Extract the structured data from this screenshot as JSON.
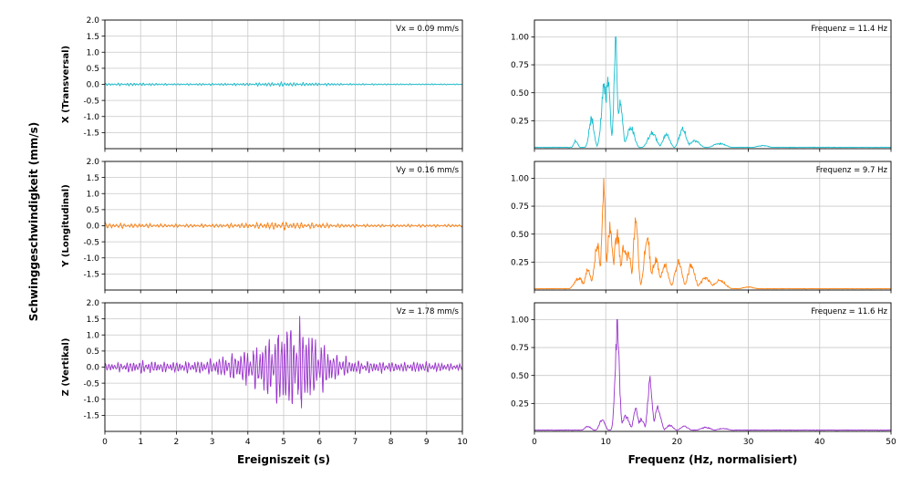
{
  "figure": {
    "shared_ylabel": "Schwinggeschwindigkeit (mm/s)"
  },
  "chart_data": [
    {
      "type": "line",
      "panel": "time-x",
      "ylabel": "X (Transversal)",
      "annotation": "Vx = 0.09 mm/s",
      "xlabel": "",
      "xlim": [
        0,
        10
      ],
      "ylim": [
        -2,
        2
      ],
      "yticks": [
        -1.5,
        -1.0,
        -0.5,
        0.0,
        0.5,
        1.0,
        1.5,
        2.0
      ],
      "ytick_labels": [
        "-1.5",
        "-1.0",
        "-0.5",
        "0.0",
        "0.5",
        "1.0",
        "1.5",
        "2.0"
      ],
      "xticks": [
        0,
        1,
        2,
        3,
        4,
        5,
        6,
        7,
        8,
        9,
        10
      ],
      "xtick_labels": [],
      "color": "#17becf",
      "waveform": {
        "duration": 10,
        "samples": 1200,
        "frequency": 11.4,
        "peak": 0.09,
        "envelope": [
          [
            0,
            0.45
          ],
          [
            1,
            0.55
          ],
          [
            2,
            0.3
          ],
          [
            3,
            0.4
          ],
          [
            4,
            0.5
          ],
          [
            5,
            0.8
          ],
          [
            6,
            0.55
          ],
          [
            7,
            0.3
          ],
          [
            8,
            0.25
          ],
          [
            9,
            0.25
          ],
          [
            10,
            0.2
          ]
        ]
      },
      "grid": true
    },
    {
      "type": "line",
      "panel": "spec-x",
      "annotation": "Frequenz = 11.4 Hz",
      "xlim": [
        0,
        50
      ],
      "ylim": [
        0,
        1.15
      ],
      "yticks": [
        0.25,
        0.5,
        0.75,
        1.0
      ],
      "ytick_labels": [
        "0.25",
        "0.50",
        "0.75",
        "1.00"
      ],
      "xticks": [
        0,
        10,
        20,
        30,
        40,
        50
      ],
      "xtick_labels": [],
      "color": "#17becf",
      "spectrum": {
        "peaks": [
          [
            5.8,
            0.08,
            0.3
          ],
          [
            8.0,
            0.3,
            0.35
          ],
          [
            9.8,
            0.63,
            0.4
          ],
          [
            10.3,
            0.67,
            0.3
          ],
          [
            11.4,
            1.0,
            0.25
          ],
          [
            12.0,
            0.45,
            0.35
          ],
          [
            13.5,
            0.22,
            0.5
          ],
          [
            16.5,
            0.16,
            0.6
          ],
          [
            18.5,
            0.14,
            0.5
          ],
          [
            20.8,
            0.2,
            0.5
          ],
          [
            22.5,
            0.08,
            0.7
          ],
          [
            26,
            0.05,
            1.0
          ],
          [
            32,
            0.03,
            1.0
          ]
        ]
      },
      "grid": true
    },
    {
      "type": "line",
      "panel": "time-y",
      "ylabel": "Y (Longitudinal)",
      "annotation": "Vy = 0.16 mm/s",
      "xlim": [
        0,
        10
      ],
      "ylim": [
        -2,
        2
      ],
      "yticks": [
        -1.5,
        -1.0,
        -0.5,
        0.0,
        0.5,
        1.0,
        1.5,
        2.0
      ],
      "ytick_labels": [
        "-1.5",
        "-1.0",
        "-0.5",
        "0.0",
        "0.5",
        "1.0",
        "1.5",
        "2.0"
      ],
      "xticks": [
        0,
        1,
        2,
        3,
        4,
        5,
        6,
        7,
        8,
        9,
        10
      ],
      "xtick_labels": [],
      "color": "#ff7f0e",
      "waveform": {
        "duration": 10,
        "samples": 1200,
        "frequency": 9.7,
        "peak": 0.16,
        "envelope": [
          [
            0,
            0.55
          ],
          [
            1,
            0.5
          ],
          [
            2,
            0.35
          ],
          [
            3,
            0.4
          ],
          [
            4,
            0.55
          ],
          [
            5,
            0.85
          ],
          [
            6,
            0.55
          ],
          [
            7,
            0.35
          ],
          [
            8,
            0.3
          ],
          [
            9,
            0.3
          ],
          [
            10,
            0.3
          ]
        ]
      },
      "grid": true
    },
    {
      "type": "line",
      "panel": "spec-y",
      "annotation": "Frequenz = 9.7 Hz",
      "xlim": [
        0,
        50
      ],
      "ylim": [
        0,
        1.15
      ],
      "yticks": [
        0.25,
        0.5,
        0.75,
        1.0
      ],
      "ytick_labels": [
        "0.25",
        "0.50",
        "0.75",
        "1.00"
      ],
      "xticks": [
        0,
        10,
        20,
        30,
        40,
        50
      ],
      "xtick_labels": [],
      "color": "#ff7f0e",
      "spectrum": {
        "peaks": [
          [
            6.2,
            0.12,
            0.6
          ],
          [
            7.5,
            0.2,
            0.4
          ],
          [
            8.8,
            0.45,
            0.4
          ],
          [
            9.7,
            1.0,
            0.25
          ],
          [
            10.6,
            0.65,
            0.35
          ],
          [
            11.6,
            0.55,
            0.4
          ],
          [
            12.6,
            0.45,
            0.4
          ],
          [
            13.2,
            0.35,
            0.4
          ],
          [
            14.2,
            0.75,
            0.3
          ],
          [
            15.8,
            0.55,
            0.4
          ],
          [
            17,
            0.3,
            0.5
          ],
          [
            18.3,
            0.25,
            0.5
          ],
          [
            20.2,
            0.28,
            0.5
          ],
          [
            22,
            0.25,
            0.5
          ],
          [
            24,
            0.12,
            0.7
          ],
          [
            26,
            0.1,
            0.8
          ],
          [
            30,
            0.03,
            1.0
          ]
        ]
      },
      "grid": true
    },
    {
      "type": "line",
      "panel": "time-z",
      "ylabel": "Z (Vertikal)",
      "annotation": "Vz = 1.78 mm/s",
      "xlabel": "Ereigniszeit (s)",
      "xlim": [
        0,
        10
      ],
      "ylim": [
        -2,
        2
      ],
      "yticks": [
        -1.5,
        -1.0,
        -0.5,
        0.0,
        0.5,
        1.0,
        1.5,
        2.0
      ],
      "ytick_labels": [
        "-1.5",
        "-1.0",
        "-0.5",
        "0.0",
        "0.5",
        "1.0",
        "1.5",
        "2.0"
      ],
      "xticks": [
        0,
        1,
        2,
        3,
        4,
        5,
        6,
        7,
        8,
        9,
        10
      ],
      "xtick_labels": [
        "0",
        "1",
        "2",
        "3",
        "4",
        "5",
        "6",
        "7",
        "8",
        "9",
        "10"
      ],
      "color": "#9933cc",
      "waveform": {
        "duration": 10,
        "samples": 1200,
        "frequency": 11.6,
        "peak": 1.78,
        "envelope": [
          [
            0,
            0.06
          ],
          [
            1,
            0.12
          ],
          [
            2,
            0.1
          ],
          [
            2.5,
            0.12
          ],
          [
            3,
            0.15
          ],
          [
            3.5,
            0.25
          ],
          [
            4,
            0.35
          ],
          [
            4.5,
            0.55
          ],
          [
            5,
            0.9
          ],
          [
            5.3,
            1.0
          ],
          [
            5.6,
            0.85
          ],
          [
            6,
            0.55
          ],
          [
            6.5,
            0.25
          ],
          [
            7,
            0.12
          ],
          [
            8,
            0.1
          ],
          [
            9,
            0.1
          ],
          [
            10,
            0.06
          ]
        ]
      },
      "grid": true
    },
    {
      "type": "line",
      "panel": "spec-z",
      "annotation": "Frequenz = 11.6 Hz",
      "xlabel": "Frequenz (Hz, normalisiert)",
      "xlim": [
        0,
        50
      ],
      "ylim": [
        0,
        1.15
      ],
      "yticks": [
        0.25,
        0.5,
        0.75,
        1.0
      ],
      "ytick_labels": [
        "0.25",
        "0.50",
        "0.75",
        "1.00"
      ],
      "xticks": [
        0,
        10,
        20,
        30,
        40,
        50
      ],
      "xtick_labels": [
        "0",
        "10",
        "20",
        "30",
        "40",
        "50"
      ],
      "color": "#9933cc",
      "spectrum": {
        "peaks": [
          [
            7.5,
            0.05,
            0.5
          ],
          [
            9.5,
            0.12,
            0.4
          ],
          [
            11.6,
            1.0,
            0.3
          ],
          [
            12.8,
            0.15,
            0.5
          ],
          [
            14.2,
            0.25,
            0.3
          ],
          [
            15.0,
            0.12,
            0.4
          ],
          [
            16.2,
            0.53,
            0.3
          ],
          [
            17.3,
            0.25,
            0.4
          ],
          [
            19,
            0.06,
            0.5
          ],
          [
            21,
            0.05,
            0.6
          ],
          [
            24,
            0.04,
            0.8
          ],
          [
            26.5,
            0.03,
            0.9
          ]
        ]
      },
      "grid": true
    }
  ]
}
